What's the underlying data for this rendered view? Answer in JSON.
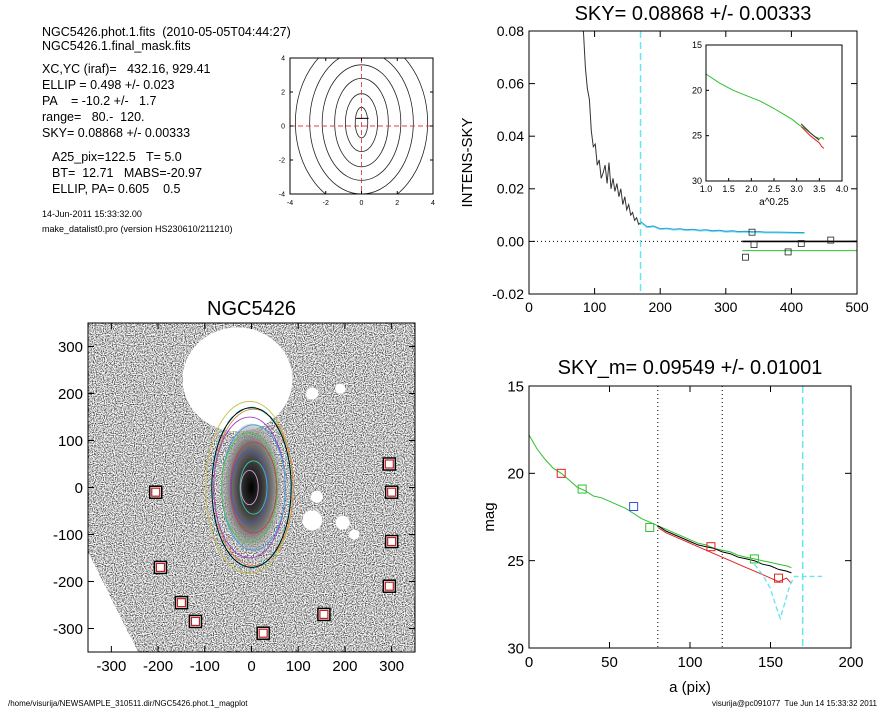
{
  "info": {
    "line1": "NGC5426.phot.1.fits  (2010-05-05T04:44:27)",
    "line2": "NGC5426.1.final_mask.fits",
    "xcyc": "XC,YC (iraf)=   432.16, 929.41",
    "ellip": "ELLIP = 0.498 +/- 0.023",
    "pa": "PA    = -10.2 +/-   1.7",
    "range": "range=   80.-  120.",
    "sky": "SKY= 0.08868 +/- 0.00333",
    "a25": "A25_pix=122.5   T= 5.0",
    "bt": "BT=  12.71   MABS=-20.97",
    "ellip_pa": "ELLIP, PA= 0.605    0.5",
    "date": "14-Jun-2011 15:33:32.00",
    "program": "make_datalist0.pro (version HS230610/211210)"
  },
  "footer": {
    "path": "/home/visurija/NEWSAMPLE_310511.dir/NGC5426.phot.1_magplot",
    "user": "visurija@pc091077  Tue Jun 14 15:33:32 2011"
  },
  "colors": {
    "cyan": "#66e6f2",
    "green": "#2ec02e",
    "red": "#e02020",
    "blue": "#3050e0"
  },
  "chart_data": [
    {
      "id": "contour_plot",
      "type": "contour",
      "xlim": [
        -4,
        4
      ],
      "ylim": [
        -4,
        4
      ],
      "xticks": [
        -4,
        -2,
        0,
        2,
        4
      ],
      "yticks": [
        -4,
        -2,
        0,
        2,
        4
      ],
      "tick_labels_x": [
        "-4",
        "-2",
        "0",
        "2",
        "4"
      ],
      "tick_labels_y": [
        "-4",
        "-2",
        "0",
        "2",
        "4"
      ],
      "contour_semi_axes": [
        [
          0.35,
          0.9
        ],
        [
          0.9,
          1.7
        ],
        [
          1.5,
          2.6
        ],
        [
          2.2,
          3.4
        ],
        [
          2.9,
          4.2
        ],
        [
          3.7,
          5.0
        ]
      ]
    },
    {
      "id": "sky_plot",
      "type": "line",
      "title": "SKY= 0.08868 +/- 0.00333",
      "ylabel": "INTENS-SKY",
      "xlim": [
        0,
        500
      ],
      "ylim": [
        -0.02,
        0.08
      ],
      "xticks": [
        0,
        100,
        200,
        300,
        400,
        500
      ],
      "yticks": [
        -0.02,
        0.0,
        0.02,
        0.04,
        0.06,
        0.08
      ],
      "tick_labels_x": [
        "0",
        "100",
        "200",
        "300",
        "400",
        "500"
      ],
      "tick_labels_y": [
        "-0.02",
        "0.00",
        "0.02",
        "0.04",
        "0.06",
        "0.08"
      ],
      "vline": 170,
      "profile": {
        "x": [
          83,
          86,
          89,
          92,
          95,
          98,
          101,
          104,
          107,
          110,
          113,
          116,
          119,
          122,
          125,
          128,
          131,
          134,
          137,
          140,
          143,
          146,
          149,
          152,
          155,
          158,
          161,
          164,
          167,
          170
        ],
        "y": [
          0.08,
          0.066,
          0.058,
          0.054,
          0.042,
          0.036,
          0.037,
          0.029,
          0.031,
          0.024,
          0.026,
          0.029,
          0.022,
          0.03,
          0.02,
          0.024,
          0.019,
          0.022,
          0.017,
          0.02,
          0.014,
          0.017,
          0.012,
          0.014,
          0.01,
          0.011,
          0.008,
          0.009,
          0.0065,
          0.007
        ]
      },
      "outer": {
        "x": [
          170,
          180,
          190,
          200,
          210,
          220,
          230,
          240,
          250,
          260,
          270,
          280,
          290,
          300,
          310,
          320,
          330,
          340,
          350,
          360,
          380,
          400,
          420
        ],
        "y": [
          0.0075,
          0.0055,
          0.0058,
          0.0048,
          0.005,
          0.0046,
          0.0048,
          0.0044,
          0.0046,
          0.0042,
          0.0044,
          0.004,
          0.0042,
          0.0038,
          0.004,
          0.0037,
          0.0038,
          0.0036,
          0.0037,
          0.0035,
          0.0035,
          0.0034,
          0.0033
        ]
      },
      "black_hline": {
        "x": [
          325,
          505
        ],
        "y": 0.0
      },
      "green_hline": {
        "x": [
          325,
          505
        ],
        "y": -0.0035
      },
      "sky_points": {
        "x": [
          330,
          340,
          343,
          395,
          415,
          460
        ],
        "y": [
          -0.006,
          0.0035,
          -0.0012,
          -0.004,
          -0.0008,
          0.0005
        ]
      },
      "inset": {
        "xlabel": "a^0.25",
        "xlim": [
          1.0,
          4.0
        ],
        "ylim": [
          15,
          30
        ],
        "xticks": [
          1.0,
          1.5,
          2.0,
          2.5,
          3.0,
          3.5,
          4.0
        ],
        "yticks": [
          15,
          20,
          25,
          30
        ],
        "tick_labels_x": [
          "1.0",
          "1.5",
          "2.0",
          "2.5",
          "3.0",
          "3.5",
          "4.0"
        ],
        "tick_labels_y": [
          "15",
          "20",
          "25",
          "30"
        ],
        "green": {
          "x": [
            1.0,
            1.3,
            1.6,
            1.9,
            2.2,
            2.5,
            2.7,
            2.9,
            3.05,
            3.2,
            3.3,
            3.4,
            3.5,
            3.55,
            3.6
          ],
          "y": [
            18.2,
            19.2,
            20.0,
            20.6,
            21.2,
            22.0,
            22.6,
            23.2,
            23.8,
            24.3,
            24.7,
            25.1,
            25.3,
            25.2,
            25.4
          ]
        },
        "red": {
          "x": [
            3.1,
            3.2,
            3.3,
            3.4,
            3.5,
            3.55,
            3.6
          ],
          "y": [
            24.0,
            24.5,
            25.0,
            25.4,
            25.8,
            26.2,
            26.4
          ]
        }
      }
    },
    {
      "id": "image_plot",
      "type": "image",
      "title": "NGC5426",
      "xlim": [
        -350,
        350
      ],
      "ylim": [
        -350,
        350
      ],
      "xticks": [
        -300,
        -200,
        -100,
        0,
        100,
        200,
        300
      ],
      "yticks": [
        -300,
        -200,
        -100,
        0,
        100,
        200,
        300
      ],
      "tick_labels_x": [
        "-300",
        "-200",
        "-100",
        "0",
        "100",
        "200",
        "300"
      ],
      "tick_labels_y": [
        "-300",
        "-200",
        "-100",
        "0",
        "100",
        "200",
        "300"
      ],
      "ellipse_a": 170,
      "ellipse_b": 85,
      "sky_boxes": {
        "x": [
          -205,
          -195,
          -150,
          -120,
          25,
          155,
          295,
          300,
          300,
          295
        ],
        "y": [
          -10,
          -170,
          -245,
          -285,
          -310,
          -270,
          -210,
          -115,
          -10,
          50
        ]
      }
    },
    {
      "id": "mag_plot",
      "type": "line",
      "title": "SKY_m=  0.09549 +/- 0.01001",
      "xlabel": "a (pix)",
      "ylabel": "mag",
      "xlim": [
        0,
        200
      ],
      "ylim": [
        30,
        15
      ],
      "xticks": [
        0,
        50,
        100,
        150,
        200
      ],
      "yticks": [
        15,
        20,
        25,
        30
      ],
      "tick_labels_x": [
        "0",
        "50",
        "100",
        "150",
        "200"
      ],
      "tick_labels_y": [
        "15",
        "20",
        "25",
        "30"
      ],
      "dotted_vlines": [
        80,
        120
      ],
      "cyan_vline": 170,
      "series": [
        {
          "color": "green",
          "x": [
            0,
            5,
            10,
            15,
            20,
            25,
            30,
            35,
            40,
            45,
            50,
            55,
            60,
            65,
            70,
            75,
            80,
            85,
            90,
            95,
            100,
            105,
            110,
            115,
            120,
            125,
            130,
            135,
            140,
            145,
            150,
            155,
            160,
            163
          ],
          "y": [
            17.8,
            18.6,
            19.2,
            19.7,
            20.0,
            20.4,
            20.8,
            21.0,
            21.3,
            21.4,
            21.6,
            21.8,
            22.0,
            22.3,
            22.6,
            22.8,
            23.0,
            23.2,
            23.4,
            23.6,
            23.8,
            24.0,
            24.1,
            24.3,
            24.4,
            24.5,
            24.7,
            24.8,
            24.9,
            25.0,
            25.1,
            25.2,
            25.3,
            25.4
          ]
        },
        {
          "color": "red",
          "x": [
            80,
            85,
            90,
            95,
            100,
            105,
            110,
            115,
            120,
            125,
            130,
            135,
            140,
            145,
            150,
            155,
            160,
            163
          ],
          "y": [
            23.1,
            23.4,
            23.6,
            23.8,
            24.0,
            24.2,
            24.4,
            24.6,
            24.8,
            25.0,
            25.2,
            25.4,
            25.6,
            25.8,
            26.0,
            26.2,
            26.0,
            26.3
          ]
        },
        {
          "color": "black",
          "x": [
            80,
            85,
            90,
            95,
            100,
            105,
            110,
            115,
            120,
            125,
            130,
            135,
            140,
            145,
            150,
            155,
            160,
            163
          ],
          "y": [
            23.0,
            23.3,
            23.5,
            23.7,
            23.9,
            24.1,
            24.2,
            24.3,
            24.5,
            24.6,
            24.8,
            24.9,
            25.0,
            25.2,
            25.3,
            25.5,
            25.6,
            25.7
          ]
        },
        {
          "color": "cyan",
          "x": [
            140,
            145,
            150,
            153,
            156,
            159,
            162,
            165,
            168,
            172,
            177,
            182
          ],
          "y": [
            25.2,
            25.8,
            26.6,
            27.5,
            28.3,
            27.4,
            26.4,
            25.9,
            25.9,
            25.9,
            25.9,
            25.9
          ]
        }
      ],
      "squares": {
        "x": [
          20,
          33,
          65,
          75,
          113,
          140,
          155
        ],
        "y": [
          20.0,
          20.9,
          21.9,
          23.1,
          24.2,
          24.9,
          26.0
        ],
        "colors": [
          "red",
          "green",
          "blue",
          "green",
          "red",
          "green",
          "red"
        ]
      }
    }
  ]
}
